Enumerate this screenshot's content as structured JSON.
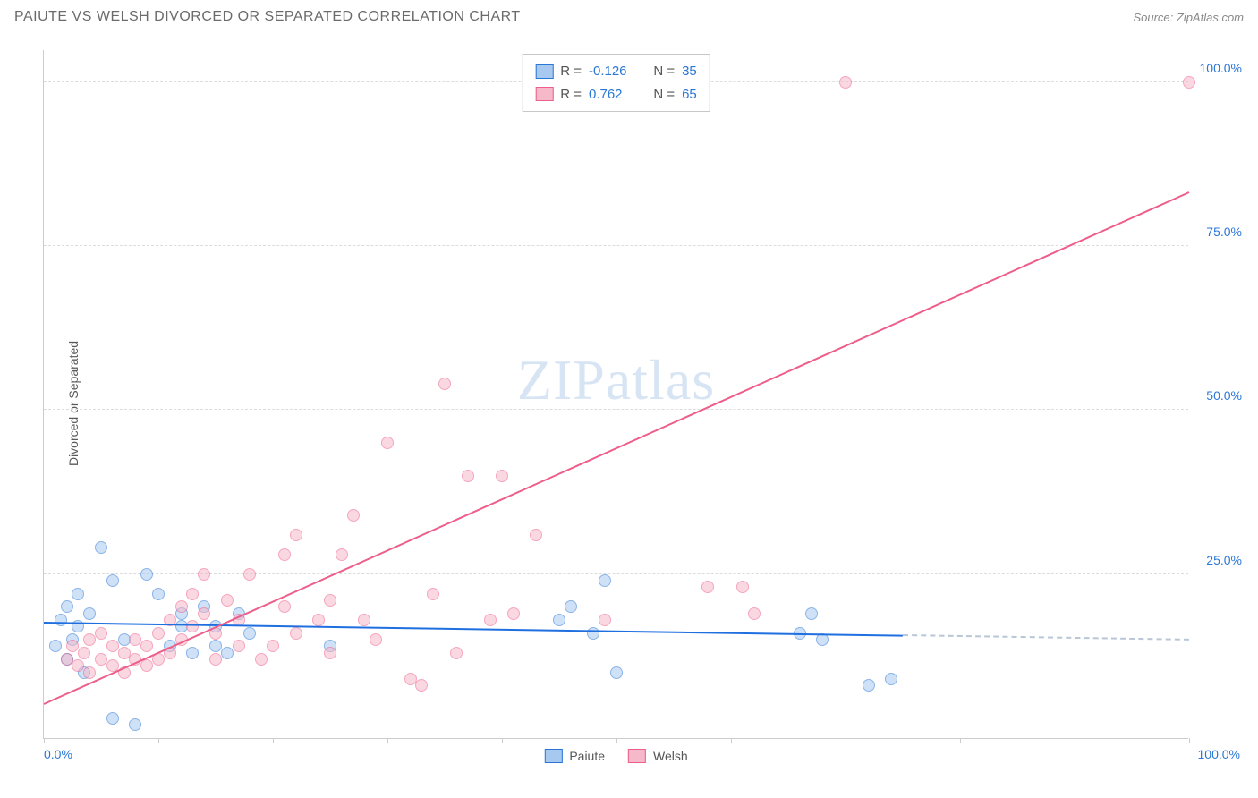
{
  "header": {
    "title": "PAIUTE VS WELSH DIVORCED OR SEPARATED CORRELATION CHART",
    "source": "Source: ZipAtlas.com"
  },
  "watermark": {
    "bold": "ZIP",
    "light": "atlas"
  },
  "chart": {
    "type": "scatter",
    "y_axis_title": "Divorced or Separated",
    "xlim": [
      0,
      100
    ],
    "ylim": [
      0,
      105
    ],
    "xtick_labels": {
      "left": "0.0%",
      "right": "100.0%"
    },
    "xtick_positions": [
      0,
      10,
      20,
      30,
      40,
      50,
      60,
      70,
      80,
      90,
      100
    ],
    "yticks": [
      {
        "v": 25,
        "label": "25.0%"
      },
      {
        "v": 50,
        "label": "50.0%"
      },
      {
        "v": 75,
        "label": "75.0%"
      },
      {
        "v": 100,
        "label": "100.0%"
      }
    ],
    "grid_color": "#dcdcdc",
    "background_color": "#ffffff",
    "marker_radius": 7,
    "marker_opacity": 0.55,
    "series": [
      {
        "name": "Paiute",
        "fill": "#a8c9ef",
        "stroke": "#2b77d6",
        "trend_color": "#1f6fe0",
        "r": "-0.126",
        "n": "35",
        "trend": {
          "x1": 0,
          "y1": 17.5,
          "x2": 75,
          "y2": 15.5,
          "dash_to_x": 100
        },
        "points": [
          [
            1,
            14
          ],
          [
            1.5,
            18
          ],
          [
            2,
            20
          ],
          [
            2,
            12
          ],
          [
            2.5,
            15
          ],
          [
            3,
            17
          ],
          [
            3,
            22
          ],
          [
            3.5,
            10
          ],
          [
            4,
            19
          ],
          [
            5,
            29
          ],
          [
            6,
            24
          ],
          [
            6,
            3
          ],
          [
            7,
            15
          ],
          [
            8,
            2
          ],
          [
            9,
            25
          ],
          [
            10,
            22
          ],
          [
            11,
            14
          ],
          [
            12,
            17
          ],
          [
            12,
            19
          ],
          [
            13,
            13
          ],
          [
            14,
            20
          ],
          [
            15,
            14
          ],
          [
            15,
            17
          ],
          [
            16,
            13
          ],
          [
            17,
            19
          ],
          [
            18,
            16
          ],
          [
            25,
            14
          ],
          [
            45,
            18
          ],
          [
            46,
            20
          ],
          [
            48,
            16
          ],
          [
            49,
            24
          ],
          [
            50,
            10
          ],
          [
            66,
            16
          ],
          [
            67,
            19
          ],
          [
            68,
            15
          ],
          [
            72,
            8
          ],
          [
            74,
            9
          ]
        ]
      },
      {
        "name": "Welsh",
        "fill": "#f6b9c9",
        "stroke": "#ed5e8a",
        "trend_color": "#ed5e8a",
        "r": "0.762",
        "n": "65",
        "trend": {
          "x1": 0,
          "y1": 5,
          "x2": 100,
          "y2": 83
        },
        "points": [
          [
            2,
            12
          ],
          [
            2.5,
            14
          ],
          [
            3,
            11
          ],
          [
            3.5,
            13
          ],
          [
            4,
            10
          ],
          [
            4,
            15
          ],
          [
            5,
            12
          ],
          [
            5,
            16
          ],
          [
            6,
            11
          ],
          [
            6,
            14
          ],
          [
            7,
            13
          ],
          [
            7,
            10
          ],
          [
            8,
            15
          ],
          [
            8,
            12
          ],
          [
            9,
            14
          ],
          [
            9,
            11
          ],
          [
            10,
            16
          ],
          [
            10,
            12
          ],
          [
            11,
            18
          ],
          [
            11,
            13
          ],
          [
            12,
            20
          ],
          [
            12,
            15
          ],
          [
            13,
            17
          ],
          [
            13,
            22
          ],
          [
            14,
            25
          ],
          [
            14,
            19
          ],
          [
            15,
            16
          ],
          [
            15,
            12
          ],
          [
            16,
            21
          ],
          [
            17,
            18
          ],
          [
            17,
            14
          ],
          [
            18,
            25
          ],
          [
            19,
            12
          ],
          [
            20,
            14
          ],
          [
            21,
            20
          ],
          [
            21,
            28
          ],
          [
            22,
            16
          ],
          [
            22,
            31
          ],
          [
            24,
            18
          ],
          [
            25,
            21
          ],
          [
            25,
            13
          ],
          [
            26,
            28
          ],
          [
            27,
            34
          ],
          [
            28,
            18
          ],
          [
            29,
            15
          ],
          [
            30,
            45
          ],
          [
            32,
            9
          ],
          [
            33,
            8
          ],
          [
            34,
            22
          ],
          [
            35,
            54
          ],
          [
            36,
            13
          ],
          [
            37,
            40
          ],
          [
            39,
            18
          ],
          [
            40,
            40
          ],
          [
            41,
            19
          ],
          [
            43,
            31
          ],
          [
            49,
            18
          ],
          [
            58,
            23
          ],
          [
            61,
            23
          ],
          [
            62,
            19
          ],
          [
            70,
            100
          ],
          [
            100,
            100
          ]
        ]
      }
    ],
    "legend_top": [
      {
        "series_idx": 0,
        "r_prefix": "R = ",
        "n_prefix": "N = "
      },
      {
        "series_idx": 1,
        "r_prefix": "R = ",
        "n_prefix": "N = "
      }
    ]
  }
}
